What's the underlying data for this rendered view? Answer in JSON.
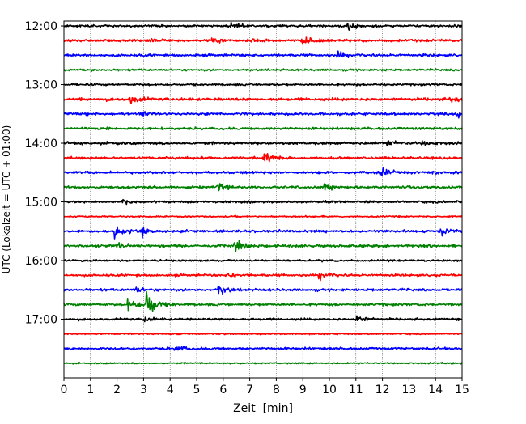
{
  "chart_data": {
    "type": "line",
    "title": "",
    "xlabel": "Zeit  [min]",
    "ylabel": "UTC (Lokalzeit = UTC + 01:00)",
    "xlim": [
      0,
      15
    ],
    "x_ticks": [
      0,
      1,
      2,
      3,
      4,
      5,
      6,
      7,
      8,
      9,
      10,
      11,
      12,
      13,
      14,
      15
    ],
    "x_tick_labels": [
      "0",
      "1",
      "2",
      "3",
      "4",
      "5",
      "6",
      "7",
      "8",
      "9",
      "10",
      "11",
      "12",
      "13",
      "14",
      "15"
    ],
    "y_range": [
      "11:55",
      "18:00"
    ],
    "y_ticks": [
      "12:00",
      "13:00",
      "14:00",
      "15:00",
      "16:00",
      "17:00"
    ],
    "grid": {
      "x": true,
      "y": false
    },
    "trace_interval_min": 15,
    "trace_colors": [
      "#000000",
      "#ff0000",
      "#0000ff",
      "#008000"
    ],
    "traces": [
      {
        "time": "12:00",
        "color": "#000000",
        "noise": 0.9,
        "events": [
          {
            "t": 6.3,
            "amp": 2.5
          },
          {
            "t": 10.7,
            "amp": 3.5
          }
        ]
      },
      {
        "time": "12:15",
        "color": "#ff0000",
        "noise": 1.0,
        "events": [
          {
            "t": 3.3,
            "amp": 2
          },
          {
            "t": 5.6,
            "amp": 4
          },
          {
            "t": 7.1,
            "amp": 2
          },
          {
            "t": 9.0,
            "amp": 4.5
          }
        ]
      },
      {
        "time": "12:30",
        "color": "#0000ff",
        "noise": 1.0,
        "events": [
          {
            "t": 10.3,
            "amp": 3.5
          }
        ]
      },
      {
        "time": "12:45",
        "color": "#008000",
        "noise": 0.8,
        "events": []
      },
      {
        "time": "13:00",
        "color": "#000000",
        "noise": 0.8,
        "events": []
      },
      {
        "time": "13:15",
        "color": "#ff0000",
        "noise": 1.2,
        "events": [
          {
            "t": 2.5,
            "amp": 4
          },
          {
            "t": 14.5,
            "amp": 2.5
          }
        ]
      },
      {
        "time": "13:30",
        "color": "#0000ff",
        "noise": 1.0,
        "events": [
          {
            "t": 2.9,
            "amp": 2
          },
          {
            "t": 14.8,
            "amp": 3.5
          }
        ]
      },
      {
        "time": "13:45",
        "color": "#008000",
        "noise": 1.0,
        "events": [
          {
            "t": 1.5,
            "amp": 2
          }
        ]
      },
      {
        "time": "14:00",
        "color": "#000000",
        "noise": 1.1,
        "events": [
          {
            "t": 12.2,
            "amp": 2.5
          },
          {
            "t": 13.5,
            "amp": 2
          }
        ]
      },
      {
        "time": "14:15",
        "color": "#ff0000",
        "noise": 1.0,
        "events": [
          {
            "t": 7.5,
            "amp": 5.5
          }
        ]
      },
      {
        "time": "14:30",
        "color": "#0000ff",
        "noise": 1.0,
        "events": [
          {
            "t": 11.9,
            "amp": 4
          },
          {
            "t": 13.8,
            "amp": 2
          }
        ]
      },
      {
        "time": "14:45",
        "color": "#008000",
        "noise": 1.0,
        "events": [
          {
            "t": 5.8,
            "amp": 3.5
          },
          {
            "t": 9.8,
            "amp": 2.5
          }
        ]
      },
      {
        "time": "15:00",
        "color": "#000000",
        "noise": 0.9,
        "events": [
          {
            "t": 2.2,
            "amp": 2
          }
        ]
      },
      {
        "time": "15:15",
        "color": "#ff0000",
        "noise": 0.6,
        "events": []
      },
      {
        "time": "15:30",
        "color": "#0000ff",
        "noise": 1.0,
        "events": [
          {
            "t": 1.9,
            "amp": 6
          },
          {
            "t": 2.9,
            "amp": 3.5
          },
          {
            "t": 14.2,
            "amp": 3.5
          }
        ]
      },
      {
        "time": "15:45",
        "color": "#008000",
        "noise": 1.1,
        "events": [
          {
            "t": 2.0,
            "amp": 2
          },
          {
            "t": 6.4,
            "amp": 4.5
          }
        ]
      },
      {
        "time": "16:00",
        "color": "#000000",
        "noise": 0.8,
        "events": []
      },
      {
        "time": "16:15",
        "color": "#ff0000",
        "noise": 0.9,
        "events": [
          {
            "t": 6.2,
            "amp": 2
          },
          {
            "t": 9.6,
            "amp": 4
          }
        ]
      },
      {
        "time": "16:30",
        "color": "#0000ff",
        "noise": 1.0,
        "events": [
          {
            "t": 2.7,
            "amp": 2.5
          },
          {
            "t": 5.8,
            "amp": 5
          }
        ]
      },
      {
        "time": "16:45",
        "color": "#008000",
        "noise": 1.0,
        "events": [
          {
            "t": 2.4,
            "amp": 6
          },
          {
            "t": 3.1,
            "amp": 17
          }
        ]
      },
      {
        "time": "17:00",
        "color": "#000000",
        "noise": 0.9,
        "events": [
          {
            "t": 3.0,
            "amp": 3.5
          },
          {
            "t": 11.0,
            "amp": 4.5
          }
        ]
      },
      {
        "time": "17:15",
        "color": "#ff0000",
        "noise": 0.6,
        "events": []
      },
      {
        "time": "17:30",
        "color": "#0000ff",
        "noise": 0.9,
        "events": [
          {
            "t": 4.2,
            "amp": 3
          }
        ]
      },
      {
        "time": "17:45",
        "color": "#008000",
        "noise": 0.6,
        "events": []
      }
    ]
  }
}
